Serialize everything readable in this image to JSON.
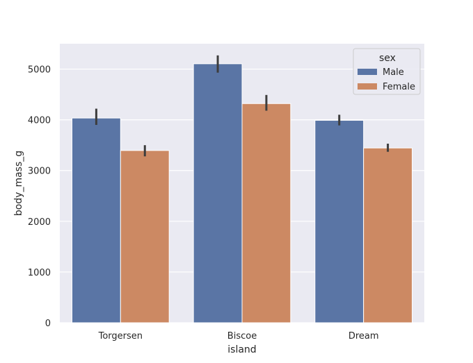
{
  "chart_data": {
    "type": "bar",
    "title": "",
    "xlabel": "island",
    "ylabel": "body_mass_g",
    "categories": [
      "Torgersen",
      "Biscoe",
      "Dream"
    ],
    "series": [
      {
        "name": "Male",
        "color": "#5a75a5",
        "values": [
          4035,
          5105,
          3990
        ],
        "err_low": [
          3900,
          4930,
          3890
        ],
        "err_high": [
          4220,
          5270,
          4100
        ]
      },
      {
        "name": "Female",
        "color": "#cc8963",
        "values": [
          3395,
          4320,
          3445
        ],
        "err_low": [
          3280,
          4180,
          3370
        ],
        "err_high": [
          3500,
          4490,
          3530
        ]
      }
    ],
    "ylim": [
      0,
      5500
    ],
    "yticks": [
      0,
      1000,
      2000,
      3000,
      4000,
      5000
    ],
    "grid": true,
    "legend": {
      "title": "sex",
      "position": "upper right",
      "entries": [
        "Male",
        "Female"
      ]
    },
    "background": "#eaeaf2"
  }
}
